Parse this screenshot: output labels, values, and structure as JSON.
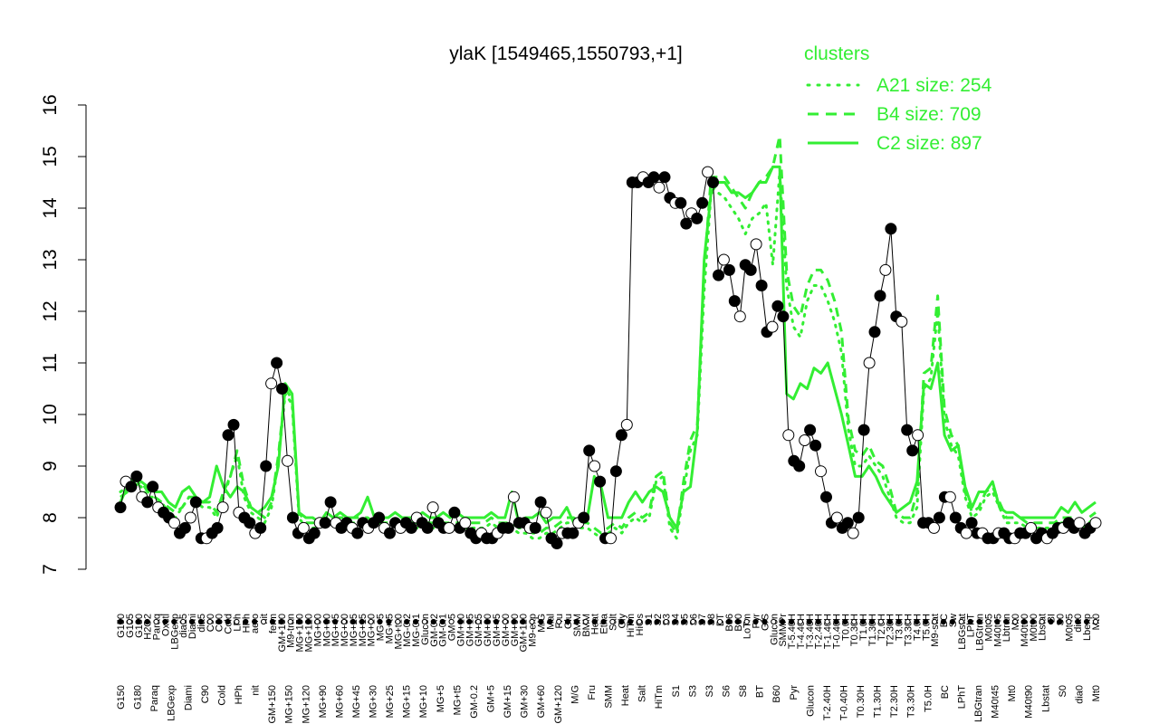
{
  "chart_data": {
    "type": "line",
    "title": "ylaK [1549465,1550793,+1]",
    "xlabel": "",
    "ylabel": "",
    "ylim": [
      7,
      16
    ],
    "yticks": [
      7,
      8,
      9,
      10,
      11,
      12,
      13,
      14,
      15,
      16
    ],
    "grid": false,
    "legend_placement": "top-right",
    "legend_title": "clusters",
    "accent_color": "#00dd00",
    "series": [
      {
        "name": "A21 size: 254",
        "style": "dotted",
        "color": "#33ee33",
        "values": [
          8.5,
          8.6,
          8.7,
          8.6,
          8.4,
          8.4,
          8.3,
          8.1,
          8.0,
          8.2,
          8.4,
          8.3,
          8.2,
          8.2,
          8.0,
          8.4,
          8.8,
          9.2,
          8.4,
          8.1,
          8.0,
          7.9,
          8.2,
          9.1,
          10.4,
          10.2,
          8.0,
          7.8,
          7.8,
          7.8,
          7.9,
          7.9,
          7.9,
          7.9,
          7.9,
          7.9,
          7.9,
          7.9,
          7.9,
          7.9,
          7.9,
          7.9,
          7.8,
          7.8,
          7.8,
          7.8,
          7.8,
          7.8,
          7.8,
          7.8,
          7.8,
          7.8,
          7.8,
          7.8,
          7.9,
          7.8,
          7.8,
          7.8,
          7.7,
          7.7,
          7.6,
          7.6,
          7.7,
          7.7,
          7.8,
          7.9,
          7.9,
          7.8,
          7.8,
          7.7,
          7.6,
          7.7,
          7.8,
          7.7,
          7.9,
          8.0,
          7.9,
          8.0,
          8.7,
          8.8,
          7.8,
          7.6,
          8.5,
          9.3,
          9.6,
          12.4,
          14.3,
          14.3,
          14.2,
          14.0,
          13.8,
          13.5,
          13.8,
          13.9,
          14.1,
          12.9,
          14.7,
          12.5,
          11.7,
          11.5,
          12.2,
          12.5,
          12.5,
          12.2,
          11.8,
          11.2,
          9.7,
          9.0,
          9.0,
          9.2,
          9.0,
          8.8,
          8.4,
          8.0,
          7.9,
          7.9,
          8.2,
          10.5,
          10.7,
          12.0,
          9.9,
          9.4,
          9.2,
          8.4,
          8.0,
          8.1,
          8.4,
          8.5,
          8.2,
          7.9,
          7.9,
          7.9,
          7.8,
          7.8,
          7.8,
          7.8,
          7.8,
          7.9,
          7.9,
          7.9,
          7.8,
          7.9,
          8.0
        ]
      },
      {
        "name": "B4 size: 709",
        "style": "dashed",
        "color": "#33ee33",
        "values": [
          8.4,
          8.5,
          8.6,
          8.7,
          8.5,
          8.4,
          8.3,
          8.2,
          8.1,
          8.2,
          8.4,
          8.4,
          8.3,
          8.3,
          8.1,
          8.5,
          8.8,
          9.3,
          8.6,
          8.2,
          8.1,
          8.0,
          8.3,
          9.2,
          10.5,
          10.3,
          8.1,
          7.9,
          7.9,
          7.9,
          8.0,
          8.0,
          8.0,
          8.0,
          8.0,
          8.0,
          8.0,
          7.9,
          7.9,
          7.9,
          7.9,
          7.9,
          7.9,
          7.9,
          7.9,
          7.9,
          7.9,
          7.9,
          7.9,
          7.9,
          7.9,
          7.9,
          7.9,
          7.9,
          8.0,
          7.9,
          7.9,
          7.9,
          7.8,
          7.8,
          7.7,
          7.7,
          7.8,
          7.8,
          7.9,
          8.0,
          8.0,
          7.9,
          7.9,
          7.8,
          7.7,
          7.8,
          7.9,
          7.8,
          8.0,
          8.1,
          8.0,
          8.1,
          8.8,
          8.9,
          7.9,
          7.7,
          8.7,
          9.5,
          9.8,
          12.8,
          14.6,
          14.6,
          14.6,
          14.4,
          14.2,
          14.0,
          14.3,
          14.5,
          14.6,
          14.8,
          15.4,
          12.8,
          12.1,
          11.9,
          12.5,
          12.8,
          12.8,
          12.6,
          12.2,
          11.6,
          9.9,
          9.3,
          9.2,
          9.4,
          9.1,
          9.0,
          8.6,
          8.1,
          8.0,
          8.0,
          8.5,
          10.8,
          10.9,
          12.3,
          10.1,
          9.6,
          9.4,
          8.5,
          8.1,
          8.2,
          8.5,
          8.6,
          8.3,
          8.0,
          8.0,
          8.0,
          7.9,
          7.9,
          7.9,
          7.9,
          7.9,
          8.0,
          8.0,
          8.0,
          7.9,
          8.0,
          8.1
        ]
      },
      {
        "name": "C2 size: 897",
        "style": "solid",
        "color": "#33ee33",
        "values": [
          8.3,
          8.6,
          8.8,
          8.7,
          8.6,
          8.5,
          8.5,
          8.3,
          8.2,
          8.5,
          8.6,
          8.4,
          8.3,
          8.4,
          9.0,
          8.6,
          8.4,
          8.6,
          8.5,
          8.2,
          8.1,
          8.2,
          8.4,
          9.0,
          10.6,
          10.4,
          8.1,
          8.0,
          8.0,
          7.9,
          8.1,
          8.0,
          8.1,
          8.0,
          8.0,
          8.1,
          8.4,
          8.0,
          8.0,
          8.0,
          8.1,
          8.0,
          8.0,
          8.0,
          8.1,
          8.0,
          8.0,
          8.1,
          8.0,
          8.1,
          8.0,
          8.0,
          8.0,
          8.0,
          8.1,
          8.0,
          8.0,
          8.5,
          7.9,
          8.0,
          8.0,
          8.1,
          7.9,
          8.0,
          8.0,
          8.2,
          7.9,
          8.0,
          8.0,
          8.8,
          8.6,
          8.0,
          8.0,
          8.0,
          8.3,
          8.5,
          8.3,
          8.5,
          8.6,
          8.5,
          8.0,
          7.8,
          8.5,
          8.6,
          9.7,
          13.0,
          14.3,
          14.5,
          14.5,
          14.3,
          14.3,
          14.2,
          14.3,
          14.5,
          14.5,
          14.8,
          14.8,
          10.4,
          10.3,
          10.6,
          10.5,
          10.9,
          10.8,
          11.0,
          10.5,
          10.0,
          9.4,
          8.8,
          8.8,
          9.0,
          8.8,
          8.5,
          8.3,
          8.1,
          8.2,
          8.3,
          8.7,
          10.6,
          10.5,
          11.0,
          9.6,
          9.3,
          9.4,
          8.6,
          8.2,
          8.5,
          8.5,
          8.7,
          8.2,
          8.1,
          8.1,
          8.0,
          8.0,
          8.0,
          8.0,
          8.0,
          8.0,
          8.2,
          8.1,
          8.3,
          8.1,
          8.2,
          8.3
        ]
      },
      {
        "name": "",
        "style": "points",
        "color": "#000000",
        "values": [
          8.2,
          8.7,
          8.6,
          8.8,
          8.4,
          8.3,
          8.6,
          8.2,
          8.1,
          8.0,
          7.9,
          7.7,
          7.8,
          8.0,
          8.3,
          7.6,
          7.6,
          7.7,
          7.8,
          8.2,
          9.6,
          9.8,
          8.1,
          8.0,
          7.9,
          7.7,
          7.8,
          9.0,
          10.6,
          11.0,
          10.5,
          9.1,
          8.0,
          7.7,
          7.8,
          7.6,
          7.7,
          7.9,
          7.9,
          8.3,
          7.9,
          7.8,
          7.9,
          7.8,
          7.7,
          7.9,
          7.8,
          7.9,
          8.0,
          7.8,
          7.7,
          7.9,
          7.8,
          7.9,
          7.8,
          8.0,
          7.9,
          7.8,
          8.2,
          7.9,
          7.8,
          7.8,
          8.1,
          7.8,
          7.9,
          7.7,
          7.6,
          7.7,
          7.6,
          7.6,
          7.7,
          7.8,
          7.8,
          8.4,
          7.9,
          7.9,
          7.8,
          7.8,
          8.3,
          8.1,
          7.6,
          7.5,
          7.7,
          7.7,
          7.7,
          7.9,
          8.0,
          9.3,
          9.0,
          8.7,
          7.6,
          7.6,
          8.9,
          9.6,
          9.8,
          14.5,
          14.5,
          14.6,
          14.5,
          14.6,
          14.4,
          14.6,
          14.2,
          14.1,
          14.1,
          13.7,
          13.9,
          13.8,
          14.1,
          14.7,
          14.5,
          12.7,
          13.0,
          12.8,
          12.2,
          11.9,
          12.9,
          12.8,
          13.3,
          12.5,
          11.6,
          11.7,
          12.1,
          11.9,
          9.6,
          9.1,
          9.0,
          9.5,
          9.7,
          9.4,
          8.9,
          8.4,
          7.9,
          8.0,
          7.8,
          7.9,
          7.7,
          8.0,
          9.7,
          11.0,
          11.6,
          12.3,
          12.8,
          13.6,
          11.9,
          11.8,
          9.7,
          9.3,
          9.6,
          7.9,
          7.9,
          7.8,
          8.0,
          8.4,
          8.4,
          8.0,
          7.8,
          7.7,
          7.9,
          7.7,
          7.7,
          7.6,
          7.6,
          7.7,
          7.7,
          7.6,
          7.6,
          7.7,
          7.7,
          7.8,
          7.6,
          7.7,
          7.6,
          7.7,
          7.8,
          7.8,
          7.9,
          7.8,
          7.9,
          7.7,
          7.8,
          7.9
        ]
      }
    ],
    "legend_entries": [
      "A21 size: 254",
      "B4 size: 709",
      "C2 size: 897"
    ],
    "xtick_labels_upper": [
      "G150",
      "G135",
      "G180",
      "H2O2",
      "Paraq",
      "Oxctl",
      "LBGexp",
      "dia15",
      "Diami",
      "dia5",
      "C90",
      "C30",
      "Cold",
      "LPh",
      "HPh",
      "aero",
      "nit",
      "ferm",
      "GM+150",
      "M9-tran",
      "MG+150",
      "MG+120",
      "MG+90",
      "MG+60",
      "MG+45",
      "MG+30",
      "MG+25",
      "MG+15",
      "MG+10",
      "MG+5",
      "MG+t5",
      "MG+t10",
      "MG-0.2",
      "MG-0.1",
      "Glucon",
      "GM-0.2",
      "GM-0.1",
      "GM+5",
      "GM+10",
      "GM+15",
      "GM+25",
      "GM+30",
      "GM+45",
      "GM+60",
      "GM+90",
      "GM+120",
      "M9-exp",
      "M/G",
      "Mal",
      "Fru",
      "Glu",
      "SMM",
      "BMM",
      "Heat",
      "Etha",
      "Salt",
      "Gly",
      "HiTm",
      "HiOs",
      "S1",
      "S2",
      "S3",
      "S4",
      "S5",
      "S6",
      "S7",
      "S8",
      "BT",
      "B36",
      "B60",
      "LoTm",
      "Pyr",
      "G/S",
      "Glucon",
      "SMMPr",
      "T-5.40H",
      "T-4.40H",
      "T-3.40H",
      "T-2.40H",
      "T-1.40H",
      "T-0.40H",
      "T0.0H",
      "T0.30H",
      "T1.0H",
      "T1.30H",
      "T2.0H",
      "T2.30H",
      "T3.0H",
      "T3.30H",
      "T4.0H",
      "T5.0H",
      "M9-stat",
      "BC",
      "Sw",
      "LBGstat",
      "LPhT",
      "LBGtran",
      "M0t45",
      "M40t45",
      "Lbtran",
      "Mt0",
      "M40t90",
      "M0t90",
      "Lbstat",
      "BI",
      "S0",
      "M0t45",
      "dia0",
      "Lbexp",
      "Mt0"
    ],
    "xtick_labels_lower": [
      "G150",
      "G180",
      "Paraq",
      "LBGexp",
      "Diami",
      "C90",
      "Cold",
      "HPh",
      "nit",
      "GM+150",
      "MG+150",
      "MG+120",
      "MG+90",
      "MG+60",
      "MG+45",
      "MG+30",
      "MG+25",
      "MG+15",
      "MG+10",
      "MG+5",
      "MG+t5",
      "GM-0.2",
      "GM+5",
      "GM+15",
      "GM+30",
      "GM+60",
      "GM+120",
      "M/G",
      "Fru",
      "SMM",
      "Heat",
      "Salt",
      "HiTm",
      "S1",
      "S3",
      "S3",
      "S6",
      "S8",
      "BT",
      "B60",
      "Pyr",
      "Glucon",
      "T-2.40H",
      "T-0.40H",
      "T0.30H",
      "T1.30H",
      "T2.30H",
      "T3.30H",
      "T5.0H",
      "BC",
      "LPhT",
      "LBGtran",
      "M40t45",
      "Mt0",
      "M40t90",
      "Lbstat",
      "S0",
      "dia0",
      "Mt0"
    ]
  }
}
